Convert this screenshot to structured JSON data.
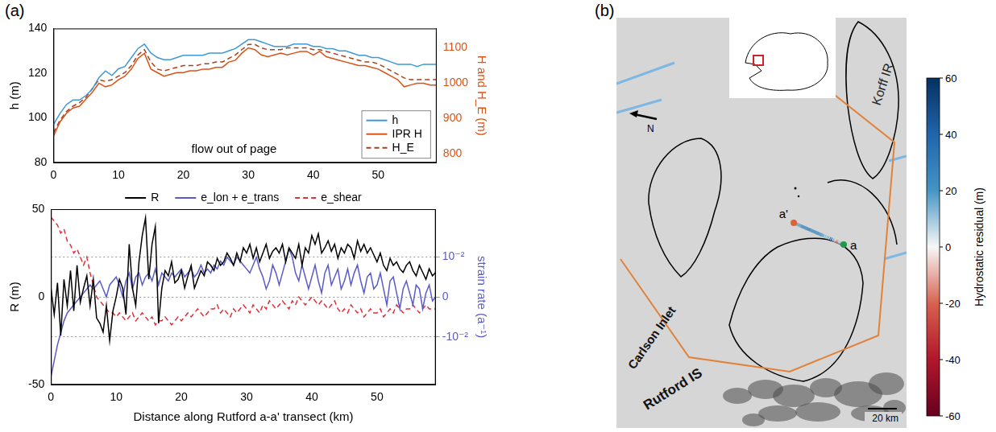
{
  "panel_labels": [
    "(a)",
    "(b)"
  ],
  "chart_data": [
    {
      "type": "line",
      "ylabel": "h (m)",
      "y2label": "H and H_E (m)",
      "annotation": "flow out of page",
      "xlim": [
        0,
        59
      ],
      "xticks": [
        0,
        10,
        20,
        30,
        40,
        50
      ],
      "ylim": [
        80,
        140
      ],
      "yticks": [
        80,
        100,
        120,
        140
      ],
      "y2lim": [
        775,
        1155
      ],
      "y2ticks": [
        800,
        900,
        1000,
        1100
      ],
      "grid": false,
      "legend": "lower right",
      "x": [
        0,
        1,
        2,
        3,
        4,
        5,
        6,
        7,
        8,
        9,
        10,
        11,
        12,
        13,
        14,
        15,
        16,
        17,
        18,
        19,
        20,
        21,
        22,
        23,
        24,
        25,
        26,
        27,
        28,
        29,
        30,
        31,
        32,
        33,
        34,
        35,
        36,
        37,
        38,
        39,
        40,
        41,
        42,
        43,
        44,
        45,
        46,
        47,
        48,
        49,
        50,
        51,
        52,
        53,
        54,
        55,
        56,
        57,
        58,
        59
      ],
      "series": [
        {
          "name": "h",
          "color": "#3d9ad6",
          "line_style": "solid",
          "marker": "none",
          "values": [
            97,
            102,
            106,
            108,
            108,
            110,
            113,
            118,
            121,
            119,
            122,
            123,
            127,
            131,
            133,
            129,
            127,
            126,
            126,
            127,
            128,
            128,
            128,
            128,
            129,
            129,
            129,
            130,
            131,
            133,
            135,
            135,
            134,
            133,
            132,
            132,
            132,
            133,
            133,
            133,
            132,
            132,
            131,
            131,
            130,
            130,
            129,
            128,
            128,
            127,
            127,
            126,
            125,
            124,
            124,
            124,
            123,
            124,
            124,
            124
          ]
        },
        {
          "name": "IPR H",
          "color": "#d95319",
          "line_style": "solid",
          "marker": "none",
          "axis": "y2",
          "values": [
            850,
            890,
            915,
            930,
            935,
            955,
            975,
            1000,
            990,
            995,
            1010,
            1020,
            1040,
            1070,
            1085,
            1040,
            1030,
            1020,
            1025,
            1030,
            1030,
            1035,
            1035,
            1040,
            1040,
            1045,
            1045,
            1060,
            1065,
            1085,
            1100,
            1095,
            1080,
            1075,
            1080,
            1085,
            1080,
            1085,
            1090,
            1090,
            1080,
            1090,
            1075,
            1070,
            1065,
            1060,
            1055,
            1050,
            1050,
            1045,
            1040,
            1030,
            1020,
            1010,
            990,
            995,
            1000,
            1000,
            995,
            995
          ]
        },
        {
          "name": "H_E",
          "color": "#a8401c",
          "line_style": "dashed",
          "marker": "none",
          "axis": "y2",
          "values": [
            860,
            895,
            920,
            935,
            945,
            960,
            985,
            1010,
            1005,
            1010,
            1020,
            1030,
            1050,
            1080,
            1095,
            1060,
            1040,
            1035,
            1040,
            1045,
            1050,
            1050,
            1050,
            1055,
            1055,
            1060,
            1060,
            1070,
            1080,
            1095,
            1110,
            1110,
            1100,
            1095,
            1095,
            1095,
            1100,
            1100,
            1100,
            1100,
            1095,
            1095,
            1090,
            1085,
            1080,
            1075,
            1070,
            1065,
            1060,
            1060,
            1055,
            1045,
            1035,
            1025,
            1015,
            1010,
            1010,
            1010,
            1010,
            1010
          ]
        }
      ]
    },
    {
      "type": "line",
      "xlabel": "Distance along Rutford a-a' transect (km)",
      "ylabel": "R (m)",
      "y2label": "strain rate (a⁻¹)",
      "xlim": [
        0,
        59
      ],
      "xticks": [
        0,
        10,
        20,
        30,
        40,
        50
      ],
      "ylim": [
        -50,
        50
      ],
      "yticks": [
        -50,
        0,
        50
      ],
      "y2lim": [
        -0.022,
        0.022
      ],
      "y2ticks": [
        {
          "value": -0.01,
          "label": "-10⁻²"
        },
        0,
        {
          "value": 0.01,
          "label": "10⁻²"
        }
      ],
      "grid": true,
      "legend": "top",
      "x": [
        0,
        0.5,
        1,
        1.5,
        2,
        2.5,
        3,
        3.5,
        4,
        4.5,
        5,
        5.5,
        6,
        6.5,
        7,
        7.5,
        8,
        8.5,
        9,
        9.5,
        10,
        10.5,
        11,
        11.5,
        12,
        12.5,
        13,
        13.5,
        14,
        14.5,
        15,
        15.5,
        16,
        16.5,
        17,
        17.5,
        18,
        18.5,
        19,
        19.5,
        20,
        20.5,
        21,
        21.5,
        22,
        22.5,
        23,
        23.5,
        24,
        24.5,
        25,
        25.5,
        26,
        26.5,
        27,
        27.5,
        28,
        28.5,
        29,
        29.5,
        30,
        30.5,
        31,
        31.5,
        32,
        32.5,
        33,
        33.5,
        34,
        34.5,
        35,
        35.5,
        36,
        36.5,
        37,
        37.5,
        38,
        38.5,
        39,
        39.5,
        40,
        40.5,
        41,
        41.5,
        42,
        42.5,
        43,
        43.5,
        44,
        44.5,
        45,
        45.5,
        46,
        46.5,
        47,
        47.5,
        48,
        48.5,
        49,
        49.5,
        50,
        50.5,
        51,
        51.5,
        52,
        52.5,
        53,
        53.5,
        54,
        54.5,
        55,
        55.5,
        56,
        56.5,
        57,
        57.5,
        58,
        58.5,
        59
      ],
      "series": [
        {
          "name": "R",
          "color": "#000000",
          "line_style": "solid",
          "marker": "none",
          "values": [
            5,
            -10,
            8,
            -22,
            10,
            -5,
            15,
            -8,
            18,
            -3,
            5,
            12,
            -5,
            10,
            -12,
            -15,
            -20,
            -5,
            -25,
            -8,
            0,
            10,
            5,
            -10,
            30,
            5,
            -5,
            20,
            35,
            45,
            10,
            30,
            40,
            -15,
            5,
            15,
            12,
            20,
            8,
            10,
            15,
            5,
            12,
            18,
            5,
            10,
            15,
            12,
            20,
            18,
            15,
            22,
            18,
            20,
            25,
            22,
            18,
            25,
            20,
            28,
            25,
            30,
            22,
            28,
            20,
            25,
            30,
            22,
            26,
            28,
            25,
            30,
            20,
            28,
            25,
            22,
            30,
            18,
            28,
            25,
            35,
            30,
            36,
            25,
            28,
            32,
            26,
            30,
            22,
            28,
            25,
            30,
            28,
            22,
            32,
            26,
            30,
            25,
            28,
            24,
            20,
            25,
            18,
            15,
            22,
            18,
            20,
            16,
            14,
            18,
            20,
            15,
            12,
            18,
            14,
            10,
            16,
            12,
            14
          ]
        },
        {
          "name": "e_lon + e_trans",
          "color": "#5b5bc8",
          "line_style": "solid",
          "marker": "none",
          "axis": "y2",
          "values": [
            -0.02,
            -0.016,
            -0.012,
            -0.009,
            -0.006,
            -0.004,
            -0.003,
            -0.002,
            -0.001,
            0.0,
            0.001,
            0.002,
            0.003,
            0.002,
            0.003,
            0.004,
            0.002,
            0.0,
            0.003,
            0.004,
            0.005,
            0.003,
            0.0,
            0.004,
            0.006,
            0.002,
            0.005,
            0.006,
            0.003,
            0.005,
            0.006,
            0.004,
            0.007,
            0.003,
            0.006,
            0.005,
            0.004,
            0.006,
            0.005,
            0.006,
            0.007,
            0.005,
            0.006,
            0.007,
            0.005,
            0.006,
            0.008,
            0.006,
            0.007,
            0.006,
            0.008,
            0.007,
            0.009,
            0.008,
            0.01,
            0.009,
            0.008,
            0.01,
            0.009,
            0.008,
            0.007,
            0.006,
            0.008,
            0.01,
            0.007,
            0.005,
            0.002,
            0.004,
            0.008,
            0.006,
            0.003,
            0.006,
            0.009,
            0.012,
            0.01,
            0.006,
            0.004,
            0.008,
            0.005,
            0.002,
            0.005,
            0.008,
            0.004,
            0.001,
            0.006,
            0.008,
            0.003,
            0.005,
            0.007,
            0.002,
            0.004,
            0.007,
            0.003,
            0.006,
            0.008,
            0.004,
            0.001,
            0.005,
            0.006,
            0.002,
            0.003,
            0.006,
            0.002,
            -0.002,
            0.004,
            0.005,
            0.001,
            -0.003,
            0.002,
            0.004,
            0.001,
            -0.002,
            0.003,
            0.002,
            -0.003,
            0.001,
            0.003,
            -0.001,
            0.0
          ]
        },
        {
          "name": "e_shear",
          "color": "#e0303a",
          "line_style": "dashed",
          "marker": "none",
          "axis": "y2",
          "values": [
            0.02,
            0.019,
            0.018,
            0.016,
            0.017,
            0.014,
            0.013,
            0.011,
            0.012,
            0.01,
            0.008,
            0.01,
            0.006,
            0.003,
            0.0,
            -0.001,
            -0.002,
            -0.003,
            -0.004,
            -0.004,
            -0.005,
            -0.004,
            -0.005,
            -0.006,
            -0.005,
            -0.004,
            -0.006,
            -0.005,
            -0.004,
            -0.005,
            -0.006,
            -0.005,
            -0.007,
            -0.006,
            -0.006,
            -0.005,
            -0.006,
            -0.007,
            -0.006,
            -0.005,
            -0.006,
            -0.005,
            -0.004,
            -0.005,
            -0.004,
            -0.003,
            -0.004,
            -0.005,
            -0.004,
            -0.003,
            -0.003,
            -0.002,
            -0.004,
            -0.003,
            -0.004,
            -0.005,
            -0.003,
            -0.004,
            -0.003,
            -0.002,
            -0.003,
            -0.004,
            -0.002,
            -0.003,
            -0.004,
            -0.002,
            -0.003,
            -0.001,
            -0.002,
            -0.003,
            -0.002,
            -0.001,
            -0.002,
            -0.003,
            -0.001,
            -0.002,
            0.0,
            -0.001,
            -0.002,
            -0.001,
            0.0,
            -0.001,
            -0.002,
            -0.001,
            -0.002,
            -0.003,
            -0.002,
            -0.001,
            -0.003,
            -0.004,
            -0.003,
            -0.004,
            -0.002,
            -0.003,
            -0.004,
            -0.003,
            -0.005,
            -0.004,
            -0.003,
            -0.004,
            -0.004,
            -0.003,
            -0.005,
            -0.004,
            -0.003,
            -0.004,
            -0.002,
            -0.003,
            -0.004,
            -0.003,
            -0.003,
            -0.002,
            -0.003,
            -0.004,
            -0.003,
            -0.002,
            -0.003,
            -0.003,
            -0.003
          ]
        }
      ]
    }
  ],
  "map": {
    "labels": [
      "Korff IR",
      "Carlson Inlet",
      "Rutford IS"
    ],
    "transect_ends": [
      "a",
      "a'"
    ],
    "north": "N",
    "scale_bar": "20 km",
    "colorbar": {
      "label": "Hydrostatic residual (m)",
      "range": [
        -60,
        60
      ],
      "ticks": [
        -60,
        -40,
        -20,
        0,
        20,
        40,
        60
      ]
    }
  }
}
